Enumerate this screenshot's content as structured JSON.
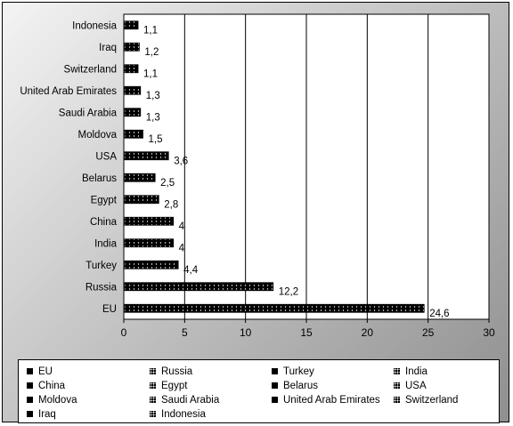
{
  "chart_data": {
    "type": "bar",
    "orientation": "horizontal",
    "title": "",
    "xlabel": "",
    "ylabel": "",
    "categories": [
      "EU",
      "Russia",
      "Turkey",
      "India",
      "China",
      "Egypt",
      "Belarus",
      "USA",
      "Moldova",
      "Saudi Arabia",
      "United Arab Emirates",
      "Switzerland",
      "Iraq",
      "Indonesia"
    ],
    "values": [
      24.6,
      12.2,
      4.4,
      4,
      4,
      2.8,
      2.5,
      3.6,
      1.5,
      1.3,
      1.3,
      1.1,
      1.2,
      1.1
    ],
    "data_labels": [
      "24,6",
      "12,2",
      "4,4",
      "4",
      "4",
      "2,8",
      "2,5",
      "3,6",
      "1,5",
      "1,3",
      "1,3",
      "1,1",
      "1,2",
      "1,1"
    ],
    "xlim": [
      0,
      30
    ],
    "xticks": [
      0,
      5,
      10,
      15,
      20,
      25,
      30
    ],
    "grid": "vertical",
    "legend_position": "bottom",
    "legend_entries": [
      "EU",
      "Russia",
      "Turkey",
      "India",
      "China",
      "Egypt",
      "Belarus",
      "USA",
      "Moldova",
      "Saudi Arabia",
      "United Arab Emirates",
      "Switzerland",
      "Iraq",
      "Indonesia"
    ],
    "bar_color": "#000000",
    "plot_background": "#ffffff"
  }
}
